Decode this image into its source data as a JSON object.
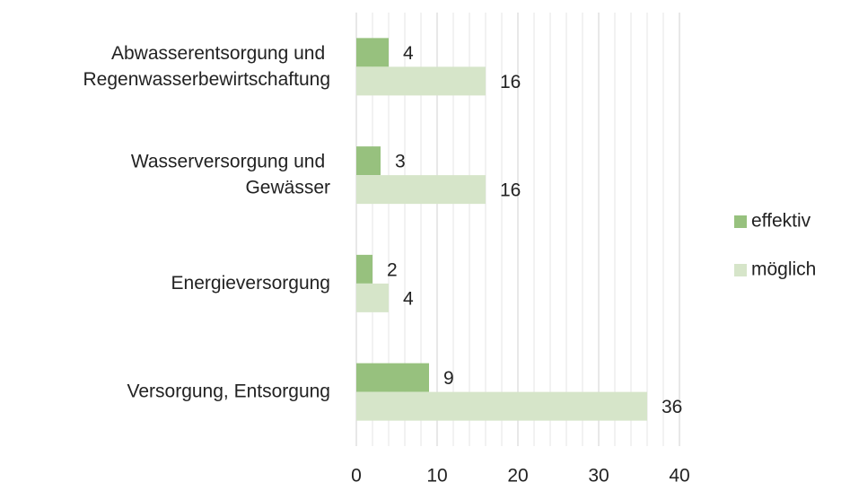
{
  "chart_data": {
    "type": "hbar",
    "categories": [
      "Abwasserentsorgung und Regenwasserbewirtschaftung",
      "Wasserversorgung und Gewässer",
      "Energieversorgung",
      "Versorgung, Entsorgung"
    ],
    "series": [
      {
        "name": "effektiv",
        "color": "#97c17e",
        "values": [
          4,
          3,
          2,
          9
        ]
      },
      {
        "name": "möglich",
        "color": "#d6e5c9",
        "values": [
          16,
          16,
          4,
          36
        ]
      }
    ],
    "xlim": [
      0,
      40
    ],
    "xticks": [
      0,
      10,
      20,
      30,
      40
    ],
    "grid": true,
    "minor_grid": true,
    "legend": "right"
  }
}
